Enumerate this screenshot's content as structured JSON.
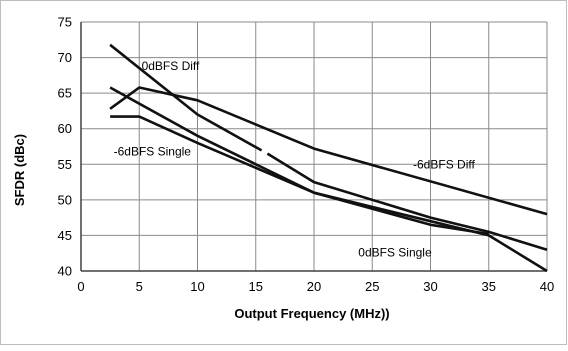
{
  "chart_data": {
    "type": "line",
    "title": "",
    "xlabel": "Output Frequency (MHz))",
    "ylabel": "SFDR (dBc)",
    "xlim": [
      0,
      40
    ],
    "ylim": [
      40,
      75
    ],
    "x_ticks": [
      0,
      5,
      10,
      15,
      20,
      25,
      30,
      35,
      40
    ],
    "y_ticks": [
      40,
      45,
      50,
      55,
      60,
      65,
      70,
      75
    ],
    "grid": true,
    "legend": "none",
    "series": [
      {
        "name": "0dBFS Diff",
        "points": [
          [
            2.5,
            71.8
          ],
          [
            10,
            62
          ],
          [
            16,
            56.5
          ],
          [
            20,
            52.5
          ],
          [
            30,
            47.5
          ],
          [
            35,
            45.5
          ],
          [
            40,
            43
          ]
        ],
        "gap_after_x": 15.5,
        "gap_before_x": 16
      },
      {
        "name": "-6dBFS Diff",
        "points": [
          [
            2.5,
            62.8
          ],
          [
            5,
            65.8
          ],
          [
            10,
            64
          ],
          [
            20,
            57.2
          ],
          [
            40,
            48
          ]
        ]
      },
      {
        "name": "0dBFS Single",
        "points": [
          [
            2.5,
            65.8
          ],
          [
            10,
            59
          ],
          [
            20,
            51
          ],
          [
            30,
            47
          ],
          [
            35,
            45
          ],
          [
            40,
            40
          ]
        ]
      },
      {
        "name": "-6dBFS Single",
        "points": [
          [
            2.5,
            61.7
          ],
          [
            5,
            61.7
          ],
          [
            10,
            58
          ],
          [
            20,
            51
          ],
          [
            30,
            46.5
          ],
          [
            35,
            45.2
          ]
        ]
      }
    ],
    "series_labels": [
      {
        "text": "0dBFS Diff",
        "x": 5.2,
        "y": 68.8
      },
      {
        "text": "-6dBFS Diff",
        "x": 28.5,
        "y": 55
      },
      {
        "text": "0dBFS Single",
        "x": 23.8,
        "y": 42.6
      },
      {
        "text": "-6dBFS Single",
        "x": 2.8,
        "y": 56.8
      }
    ],
    "colors": {
      "line": "#111111",
      "grid": "#8a8a8a",
      "axis": "#404040",
      "border": "#bdbdbd"
    }
  }
}
